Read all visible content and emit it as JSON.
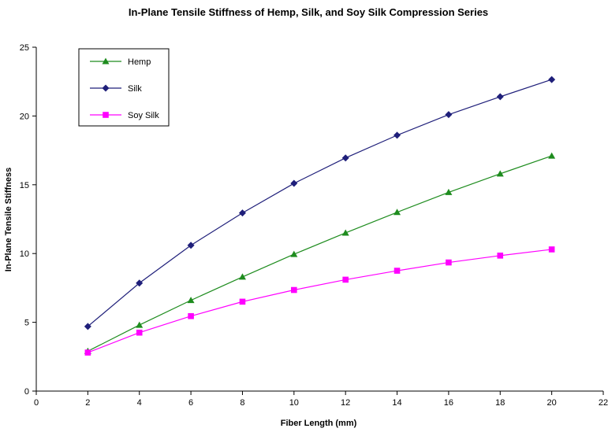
{
  "chart_data": {
    "type": "line",
    "title": "In-Plane Tensile Stiffness of Hemp, Silk, and Soy Silk Compression Series",
    "xlabel": "Fiber Length (mm)",
    "ylabel": "In-Plane Tensile Stiffness",
    "xlim": [
      0,
      22
    ],
    "ylim": [
      0,
      25
    ],
    "xticks": [
      "0",
      "2",
      "4",
      "6",
      "8",
      "10",
      "12",
      "14",
      "16",
      "18",
      "20",
      "22"
    ],
    "yticks": [
      "0",
      "5",
      "10",
      "15",
      "20",
      "25"
    ],
    "grid": false,
    "legend_position": "top-left",
    "x": [
      2,
      4,
      6,
      8,
      10,
      12,
      14,
      16,
      18,
      20
    ],
    "series": [
      {
        "name": "Hemp",
        "color": "#1e8c1e",
        "marker": "triangle",
        "values": [
          2.9,
          4.8,
          6.6,
          8.3,
          9.95,
          11.5,
          13.0,
          14.45,
          15.8,
          17.1
        ]
      },
      {
        "name": "Silk",
        "color": "#1f1f7a",
        "marker": "diamond",
        "values": [
          4.7,
          7.85,
          10.6,
          12.95,
          15.1,
          16.95,
          18.6,
          20.1,
          21.4,
          22.65
        ]
      },
      {
        "name": "Soy Silk",
        "color": "#ff00ff",
        "marker": "square",
        "values": [
          2.8,
          4.25,
          5.45,
          6.5,
          7.35,
          8.1,
          8.75,
          9.35,
          9.85,
          10.3
        ]
      }
    ]
  }
}
